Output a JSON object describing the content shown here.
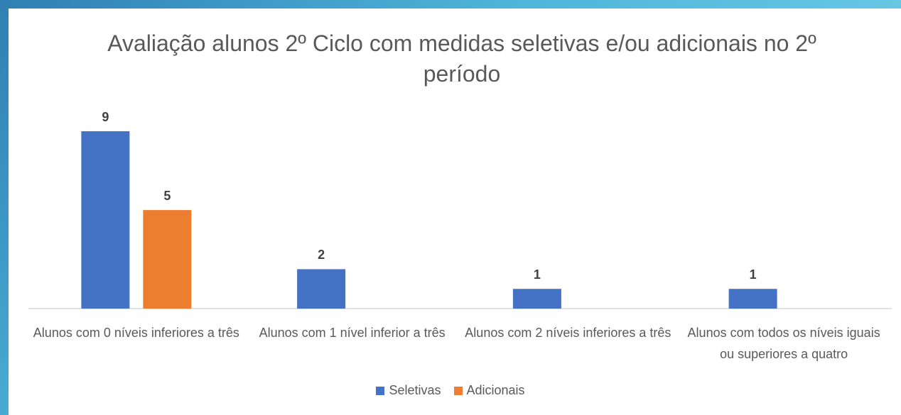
{
  "chart_data": {
    "type": "bar",
    "title": "Avaliação alunos 2º Ciclo com medidas seletivas e/ou adicionais no 2º período",
    "categories": [
      "Alunos com 0 níveis inferiores a três",
      "Alunos com 1 nível inferior a três",
      "Alunos com 2 níveis inferiores a três",
      "Alunos com todos os níveis iguais ou superiores a quatro"
    ],
    "series": [
      {
        "name": "Seletivas",
        "color": "#4472c4",
        "values": [
          9,
          2,
          1,
          1
        ]
      },
      {
        "name": "Adicionais",
        "color": "#ed7d31",
        "values": [
          5,
          null,
          null,
          null
        ]
      }
    ],
    "legend": "bottom"
  }
}
